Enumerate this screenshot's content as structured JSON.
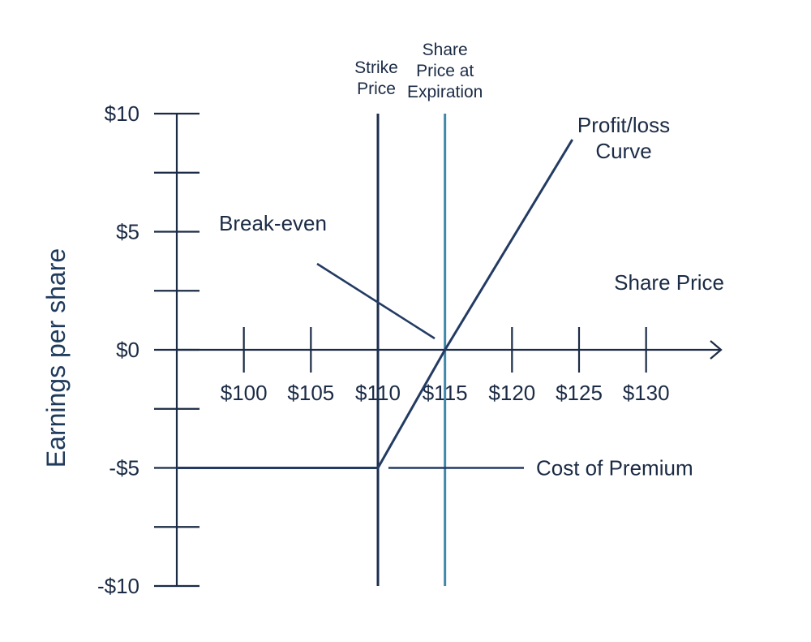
{
  "chart_data": {
    "type": "line",
    "title": "",
    "xlabel": "Share Price",
    "ylabel": "Earnings per share",
    "x_ticks": [
      "$100",
      "$105",
      "$110",
      "$115",
      "$120",
      "$125",
      "$130"
    ],
    "x_tick_values": [
      100,
      105,
      110,
      115,
      120,
      125,
      130
    ],
    "y_ticks": [
      "$10",
      "$5",
      "$0",
      "-$5",
      "-$10"
    ],
    "y_tick_values": [
      10,
      5,
      0,
      -5,
      -10
    ],
    "xlim": [
      95,
      130
    ],
    "ylim": [
      -10,
      10
    ],
    "grid": false,
    "series": [
      {
        "x": [
          95,
          110,
          115,
          124.5
        ],
        "y": [
          -5,
          -5,
          0,
          8.9
        ]
      }
    ],
    "vlines": [
      {
        "x": 110,
        "label": [
          "Strike",
          "Price"
        ],
        "color": "#1c2e4f"
      },
      {
        "x": 115,
        "label": [
          "Share",
          "Price at",
          "Expiration"
        ],
        "color": "#3e88a8"
      }
    ],
    "annotations": [
      {
        "name": "profit-loss-label",
        "text": [
          "Profit/loss",
          "Curve"
        ],
        "at": [
          124.5,
          8.9
        ]
      },
      {
        "name": "break-even-label",
        "text": [
          "Break-even"
        ],
        "at": [
          115,
          0
        ]
      },
      {
        "name": "cost-of-premium-label",
        "text": [
          "Cost of Premium"
        ],
        "at": [
          110,
          -5
        ]
      }
    ],
    "colors": {
      "axis": "#1b2b45",
      "curve": "#233b63",
      "strike_line": "#1c2e4f",
      "expiration_line": "#3e88a8",
      "text": "#1b2b45",
      "ylabel": "#1f3b5c"
    }
  }
}
